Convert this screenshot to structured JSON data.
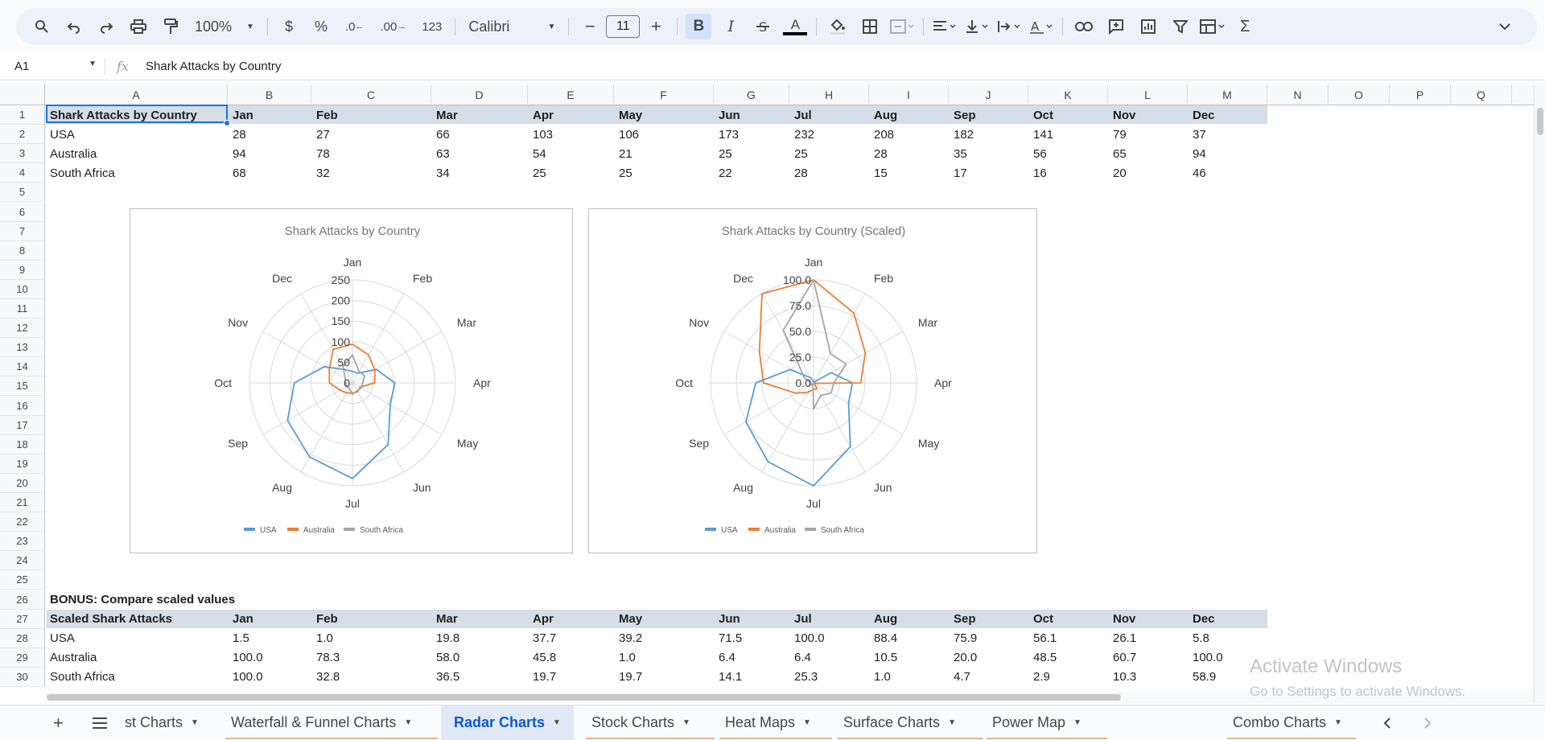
{
  "toolbar": {
    "zoom": "100%",
    "currency": "$",
    "percent": "%",
    "dec_less": ".0",
    "dec_more": ".00",
    "number_format": "123",
    "font": "Calibri",
    "font_size": "11",
    "bold": "B",
    "italic": "I",
    "text_color": "A",
    "minus": "−",
    "plus": "+"
  },
  "formula_bar": {
    "cell_ref": "A1",
    "fx": "fx",
    "content": "Shark Attacks by Country"
  },
  "columns": [
    "A",
    "B",
    "C",
    "D",
    "E",
    "F",
    "G",
    "H",
    "I",
    "J",
    "K",
    "L",
    "M",
    "N",
    "O",
    "P",
    "Q"
  ],
  "rows": [
    "1",
    "2",
    "3",
    "4",
    "5",
    "6",
    "7",
    "8",
    "9",
    "10",
    "11",
    "12",
    "13",
    "14",
    "15",
    "16",
    "17",
    "18",
    "19",
    "20",
    "21",
    "22",
    "23",
    "24",
    "25",
    "26",
    "27",
    "28",
    "29",
    "30"
  ],
  "table1": {
    "header": [
      "Shark Attacks by Country",
      "Jan",
      "Feb",
      "Mar",
      "Apr",
      "May",
      "Jun",
      "Jul",
      "Aug",
      "Sep",
      "Oct",
      "Nov",
      "Dec"
    ],
    "rows": [
      [
        "USA",
        "28",
        "27",
        "66",
        "103",
        "106",
        "173",
        "232",
        "208",
        "182",
        "141",
        "79",
        "37"
      ],
      [
        "Australia",
        "94",
        "78",
        "63",
        "54",
        "21",
        "25",
        "25",
        "28",
        "35",
        "56",
        "65",
        "94"
      ],
      [
        "South Africa",
        "68",
        "32",
        "34",
        "25",
        "25",
        "22",
        "28",
        "15",
        "17",
        "16",
        "20",
        "46"
      ]
    ]
  },
  "bonus_label": "BONUS: Compare scaled values",
  "table2": {
    "header": [
      "Scaled Shark Attacks",
      "Jan",
      "Feb",
      "Mar",
      "Apr",
      "May",
      "Jun",
      "Jul",
      "Aug",
      "Sep",
      "Oct",
      "Nov",
      "Dec"
    ],
    "rows": [
      [
        "USA",
        "1.5",
        "1.0",
        "19.8",
        "37.7",
        "39.2",
        "71.5",
        "100.0",
        "88.4",
        "75.9",
        "56.1",
        "26.1",
        "5.8"
      ],
      [
        "Australia",
        "100.0",
        "78.3",
        "58.0",
        "45.8",
        "1.0",
        "6.4",
        "6.4",
        "10.5",
        "20.0",
        "48.5",
        "60.7",
        "100.0"
      ],
      [
        "South Africa",
        "100.0",
        "32.8",
        "36.5",
        "19.7",
        "19.7",
        "14.1",
        "25.3",
        "1.0",
        "4.7",
        "2.9",
        "10.3",
        "58.9"
      ]
    ]
  },
  "chart_data": [
    {
      "type": "radar",
      "title": "Shark Attacks by Country",
      "categories": [
        "Jan",
        "Feb",
        "Mar",
        "Apr",
        "May",
        "Jun",
        "Jul",
        "Aug",
        "Sep",
        "Oct",
        "Nov",
        "Dec"
      ],
      "rmax": 250,
      "ticks": [
        "0",
        "50",
        "100",
        "150",
        "200",
        "250"
      ],
      "tick_values": [
        0,
        50,
        100,
        150,
        200,
        250
      ],
      "legend_position": "bottom",
      "series": [
        {
          "name": "USA",
          "color": "#5b9bd5",
          "values": [
            28,
            27,
            66,
            103,
            106,
            173,
            232,
            208,
            182,
            141,
            79,
            37
          ]
        },
        {
          "name": "Australia",
          "color": "#ed7d31",
          "values": [
            94,
            78,
            63,
            54,
            21,
            25,
            25,
            28,
            35,
            56,
            65,
            94
          ]
        },
        {
          "name": "South Africa",
          "color": "#a5a5a5",
          "values": [
            68,
            32,
            34,
            25,
            25,
            22,
            28,
            15,
            17,
            16,
            20,
            46
          ]
        }
      ]
    },
    {
      "type": "radar",
      "title": "Shark Attacks by Country (Scaled)",
      "categories": [
        "Jan",
        "Feb",
        "Mar",
        "Apr",
        "May",
        "Jun",
        "Jul",
        "Aug",
        "Sep",
        "Oct",
        "Nov",
        "Dec"
      ],
      "rmax": 100,
      "ticks": [
        "0.0",
        "25.0",
        "50.0",
        "75.0",
        "100.0"
      ],
      "tick_values": [
        0,
        25,
        50,
        75,
        100
      ],
      "legend_position": "bottom",
      "series": [
        {
          "name": "USA",
          "color": "#5b9bd5",
          "values": [
            1.5,
            1.0,
            19.8,
            37.7,
            39.2,
            71.5,
            100.0,
            88.4,
            75.9,
            56.1,
            26.1,
            5.8
          ]
        },
        {
          "name": "Australia",
          "color": "#ed7d31",
          "values": [
            100.0,
            78.3,
            58.0,
            45.8,
            1.0,
            6.4,
            6.4,
            10.5,
            20.0,
            48.5,
            60.7,
            100.0
          ]
        },
        {
          "name": "South Africa",
          "color": "#a5a5a5",
          "values": [
            100.0,
            32.8,
            36.5,
            19.7,
            19.7,
            14.1,
            25.3,
            1.0,
            4.7,
            2.9,
            10.3,
            58.9
          ]
        }
      ]
    }
  ],
  "watermark": {
    "line1": "Activate Windows",
    "line2": "Go to Settings to activate Windows."
  },
  "tabs": [
    {
      "label": "st Charts"
    },
    {
      "label": "Waterfall & Funnel Charts"
    },
    {
      "label": "Radar Charts",
      "active": true
    },
    {
      "label": "Stock Charts"
    },
    {
      "label": "Heat Maps"
    },
    {
      "label": "Surface Charts"
    },
    {
      "label": "Power Map"
    },
    {
      "label": "Combo Charts"
    }
  ],
  "colors": {
    "accent": "#1a73e8",
    "header_fill": "#d5dde7",
    "active_tab": "#0b57d0"
  }
}
